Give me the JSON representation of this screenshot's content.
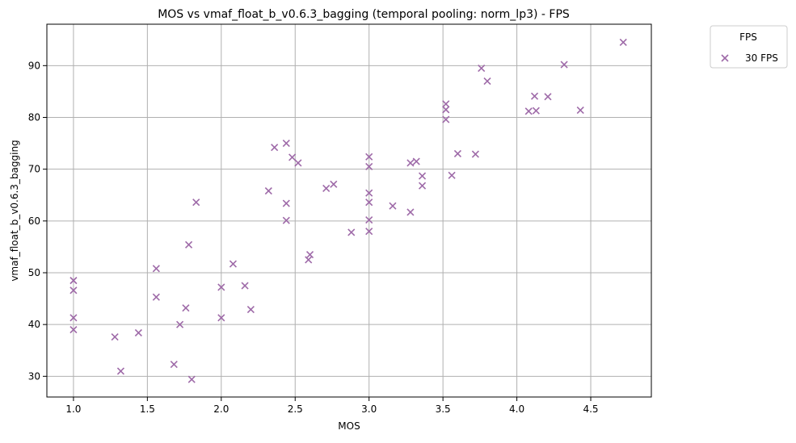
{
  "chart_data": {
    "type": "scatter",
    "title": "MOS vs vmaf_float_b_v0.6.3_bagging (temporal pooling: norm_lp3) - FPS",
    "xlabel": "MOS",
    "ylabel": "vmaf_float_b_v0.6.3_bagging",
    "xlim": [
      0.82,
      4.91
    ],
    "ylim": [
      26.0,
      98.0
    ],
    "xticks": [
      "1.0",
      "1.5",
      "2.0",
      "2.5",
      "3.0",
      "3.5",
      "4.0",
      "4.5"
    ],
    "yticks": [
      "30",
      "40",
      "50",
      "60",
      "70",
      "80",
      "90"
    ],
    "grid": true,
    "legend": {
      "title": "FPS",
      "placement": "outside-top-right"
    },
    "series": [
      {
        "name": "30 FPS",
        "color": "#9e6aa8",
        "marker": "x",
        "points": [
          [
            1.0,
            48.5
          ],
          [
            1.0,
            46.6
          ],
          [
            1.0,
            41.3
          ],
          [
            1.0,
            39.0
          ],
          [
            1.28,
            37.6
          ],
          [
            1.32,
            31.0
          ],
          [
            1.44,
            38.4
          ],
          [
            1.56,
            50.8
          ],
          [
            1.56,
            45.3
          ],
          [
            1.68,
            32.3
          ],
          [
            1.72,
            40.0
          ],
          [
            1.76,
            43.2
          ],
          [
            1.78,
            55.4
          ],
          [
            1.8,
            29.4
          ],
          [
            1.83,
            63.6
          ],
          [
            2.0,
            47.2
          ],
          [
            2.0,
            41.3
          ],
          [
            2.08,
            51.7
          ],
          [
            2.16,
            47.5
          ],
          [
            2.2,
            42.9
          ],
          [
            2.32,
            65.8
          ],
          [
            2.36,
            74.2
          ],
          [
            2.44,
            75.0
          ],
          [
            2.44,
            63.4
          ],
          [
            2.44,
            60.1
          ],
          [
            2.48,
            72.3
          ],
          [
            2.52,
            71.2
          ],
          [
            2.59,
            52.5
          ],
          [
            2.6,
            53.5
          ],
          [
            2.71,
            66.3
          ],
          [
            2.76,
            67.1
          ],
          [
            2.88,
            57.8
          ],
          [
            3.0,
            72.4
          ],
          [
            3.0,
            70.5
          ],
          [
            3.0,
            65.4
          ],
          [
            3.0,
            63.6
          ],
          [
            3.0,
            60.2
          ],
          [
            3.0,
            58.0
          ],
          [
            3.16,
            62.9
          ],
          [
            3.28,
            71.2
          ],
          [
            3.28,
            61.7
          ],
          [
            3.32,
            71.5
          ],
          [
            3.36,
            68.7
          ],
          [
            3.36,
            66.8
          ],
          [
            3.52,
            82.6
          ],
          [
            3.52,
            81.5
          ],
          [
            3.52,
            79.6
          ],
          [
            3.56,
            68.8
          ],
          [
            3.6,
            73.0
          ],
          [
            3.72,
            72.9
          ],
          [
            3.76,
            89.5
          ],
          [
            3.8,
            87.0
          ],
          [
            4.08,
            81.2
          ],
          [
            4.12,
            84.1
          ],
          [
            4.13,
            81.3
          ],
          [
            4.21,
            84.0
          ],
          [
            4.32,
            90.2
          ],
          [
            4.43,
            81.4
          ],
          [
            4.72,
            94.5
          ]
        ]
      }
    ]
  }
}
